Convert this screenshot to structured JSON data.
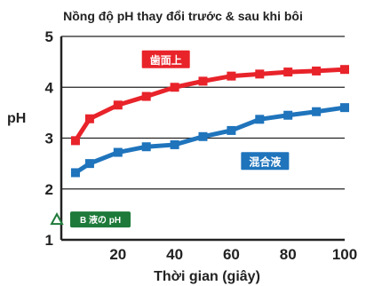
{
  "chart_data": {
    "type": "line",
    "title": "Nồng độ pH thay đổi trước & sau khi bôi",
    "xlabel": "Thời gian (giây)",
    "ylabel": "pH",
    "xlim": [
      0,
      100
    ],
    "ylim": [
      1,
      5
    ],
    "x_ticks": [
      "20",
      "40",
      "60",
      "80",
      "100"
    ],
    "y_ticks": [
      "1",
      "2",
      "3",
      "4",
      "5"
    ],
    "grid": "horizontal",
    "x": [
      5,
      10,
      20,
      30,
      40,
      50,
      60,
      70,
      80,
      90,
      100
    ],
    "series": [
      {
        "name": "歯面上",
        "color": "#e8232a",
        "values": [
          2.95,
          3.38,
          3.65,
          3.82,
          4.0,
          4.12,
          4.22,
          4.26,
          4.3,
          4.32,
          4.35
        ]
      },
      {
        "name": "混合液",
        "color": "#1f74bc",
        "values": [
          2.32,
          2.5,
          2.72,
          2.83,
          2.87,
          3.03,
          3.15,
          3.37,
          3.45,
          3.52,
          3.6
        ]
      }
    ],
    "annotation": {
      "text": "B 液の pH",
      "value": 1.4,
      "color": "#1e7a3a",
      "marker": "triangle-outline"
    }
  }
}
